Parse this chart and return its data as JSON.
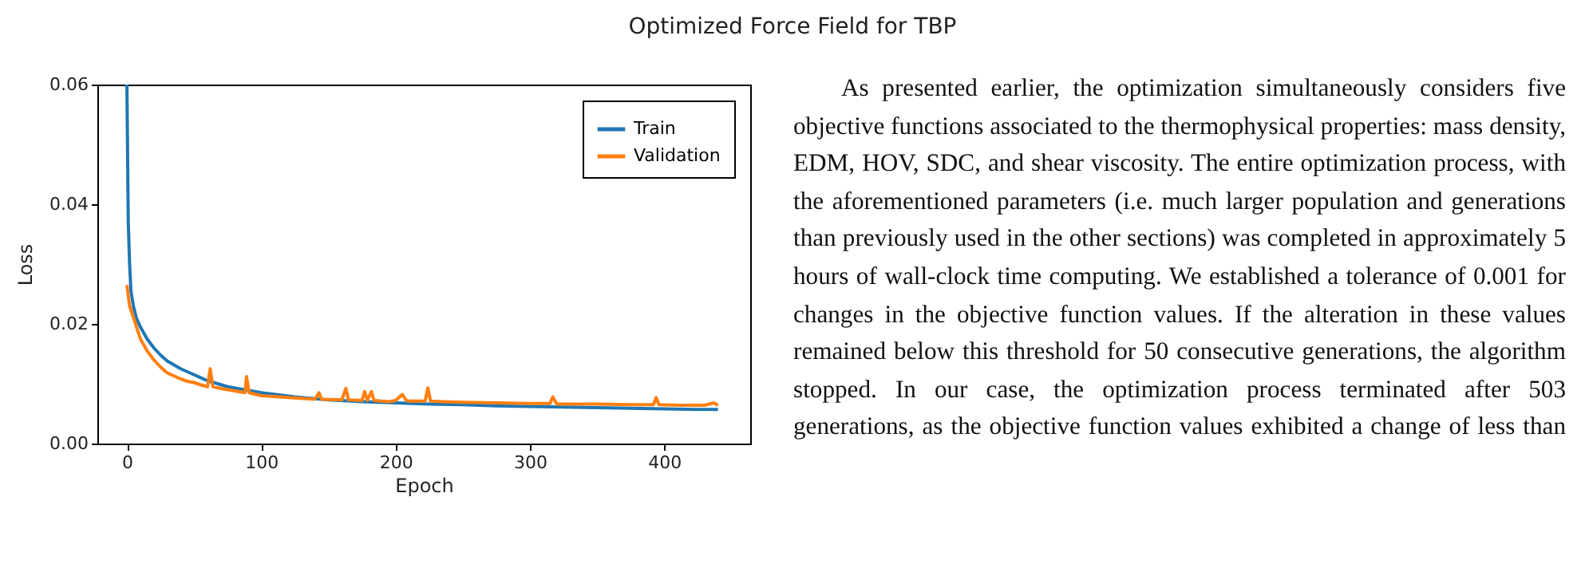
{
  "chart_data": {
    "type": "line",
    "title": "Optimized Force Field for TBP",
    "xlabel": "Epoch",
    "ylabel": "Loss",
    "xlim": [
      -22,
      464
    ],
    "xticks": [
      0,
      100,
      200,
      300,
      400
    ],
    "ylim": [
      0,
      0.06
    ],
    "yticks": [
      {
        "value": 0,
        "label": "0.00"
      },
      {
        "value": 0.02,
        "label": "0.02"
      },
      {
        "value": 0.04,
        "label": "0.04"
      },
      {
        "value": 0.06,
        "label": "0.06"
      }
    ],
    "grid": false,
    "legend": "top right",
    "marker": "none",
    "line_style": "solid",
    "series": [
      {
        "name": "Train",
        "color": "#1f77b4",
        "x": [
          0,
          1,
          2,
          3,
          5,
          7,
          10,
          15,
          20,
          25,
          30,
          40,
          50,
          60,
          75,
          100,
          125,
          150,
          175,
          200,
          225,
          250,
          275,
          300,
          325,
          350,
          375,
          400,
          425,
          440
        ],
        "values": [
          0.06,
          0.037,
          0.03,
          0.0255,
          0.0228,
          0.021,
          0.0195,
          0.0175,
          0.016,
          0.0148,
          0.0138,
          0.0125,
          0.0115,
          0.0105,
          0.0095,
          0.0085,
          0.0078,
          0.0073,
          0.007,
          0.0068,
          0.0066,
          0.0065,
          0.0063,
          0.0062,
          0.0061,
          0.006,
          0.0059,
          0.0058,
          0.0057,
          0.0057
        ]
      },
      {
        "name": "Validation",
        "color": "#ff7f0e",
        "x": [
          0,
          2,
          5,
          10,
          15,
          20,
          25,
          30,
          35,
          40,
          45,
          50,
          55,
          60,
          62,
          64,
          70,
          75,
          80,
          88,
          89,
          91,
          100,
          120,
          140,
          143,
          145,
          160,
          163,
          165,
          175,
          177,
          179,
          182,
          184,
          195,
          200,
          205,
          208,
          210,
          222,
          224,
          226,
          235,
          250,
          275,
          300,
          315,
          317,
          320,
          350,
          375,
          392,
          394,
          396,
          410,
          430,
          437,
          440
        ],
        "values": [
          0.0265,
          0.023,
          0.021,
          0.0175,
          0.0155,
          0.014,
          0.0128,
          0.0118,
          0.0113,
          0.0108,
          0.0104,
          0.0102,
          0.0098,
          0.0095,
          0.0125,
          0.0095,
          0.0092,
          0.009,
          0.0088,
          0.0085,
          0.0112,
          0.0085,
          0.008,
          0.0077,
          0.0074,
          0.0085,
          0.0074,
          0.0073,
          0.0092,
          0.0073,
          0.0072,
          0.0087,
          0.0072,
          0.0087,
          0.0072,
          0.007,
          0.0072,
          0.0082,
          0.0072,
          0.0071,
          0.0071,
          0.0093,
          0.0071,
          0.007,
          0.0069,
          0.0068,
          0.0067,
          0.0067,
          0.0078,
          0.0066,
          0.0066,
          0.0065,
          0.0065,
          0.0077,
          0.0065,
          0.0064,
          0.0064,
          0.0068,
          0.0064
        ]
      }
    ],
    "annotations": [
      "As presented earlier, the optimization simultaneously considers five objective functions associated to the thermophysical properties: mass density, EDM, HOV, SDC, and shear viscosity. The entire optimization process, with the aforementioned parameters (i.e. much larger population and generations than previously used in the other sections) was completed in approximately 5 hours of wall-clock time computing. We established a tolerance of 0.001 for changes in the objective function values. If the alteration in these values remained below this threshold for 50 consecutive generations, the algorithm stopped. In our case, the optimization process terminated after 503 generations, as the objective function values exhibited a change of less than"
    ]
  }
}
